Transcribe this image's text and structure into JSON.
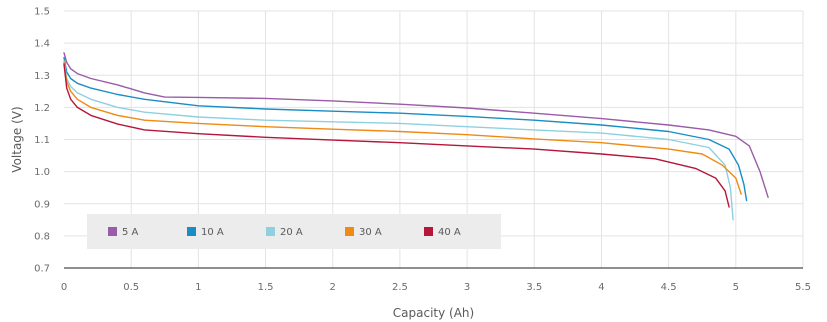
{
  "chart_data": {
    "type": "line",
    "title": "",
    "xlabel": "Capacity (Ah)",
    "ylabel": "Voltage (V)",
    "xlim": [
      0,
      5.5
    ],
    "ylim": [
      0.7,
      1.5
    ],
    "x_ticks": [
      "0",
      "0.5",
      "1",
      "1.5",
      "2",
      "2.5",
      "3",
      "3.5",
      "4",
      "4.5",
      "5",
      "5.5"
    ],
    "y_ticks": [
      "0.7",
      "0.8",
      "0.9",
      "1.0",
      "1.1",
      "1.2",
      "1.3",
      "1.4",
      "1.5"
    ],
    "grid": true,
    "legend_position": "bottom-left",
    "series": [
      {
        "name": "5 A",
        "color": "#9a5ba8",
        "points": [
          [
            0,
            1.37
          ],
          [
            0.02,
            1.34
          ],
          [
            0.05,
            1.32
          ],
          [
            0.1,
            1.305
          ],
          [
            0.2,
            1.29
          ],
          [
            0.4,
            1.27
          ],
          [
            0.6,
            1.245
          ],
          [
            0.75,
            1.232
          ],
          [
            1.0,
            1.231
          ],
          [
            1.5,
            1.228
          ],
          [
            2.0,
            1.22
          ],
          [
            2.5,
            1.21
          ],
          [
            3.0,
            1.198
          ],
          [
            3.5,
            1.182
          ],
          [
            4.0,
            1.165
          ],
          [
            4.5,
            1.145
          ],
          [
            4.8,
            1.13
          ],
          [
            5.0,
            1.11
          ],
          [
            5.1,
            1.08
          ],
          [
            5.18,
            1.0
          ],
          [
            5.24,
            0.92
          ]
        ]
      },
      {
        "name": "10 A",
        "color": "#1a8dc4",
        "points": [
          [
            0,
            1.355
          ],
          [
            0.02,
            1.31
          ],
          [
            0.05,
            1.29
          ],
          [
            0.1,
            1.275
          ],
          [
            0.2,
            1.26
          ],
          [
            0.4,
            1.24
          ],
          [
            0.6,
            1.225
          ],
          [
            1.0,
            1.205
          ],
          [
            1.5,
            1.195
          ],
          [
            2.0,
            1.188
          ],
          [
            2.5,
            1.182
          ],
          [
            3.0,
            1.172
          ],
          [
            3.5,
            1.16
          ],
          [
            4.0,
            1.145
          ],
          [
            4.5,
            1.125
          ],
          [
            4.8,
            1.1
          ],
          [
            4.95,
            1.07
          ],
          [
            5.02,
            1.02
          ],
          [
            5.06,
            0.96
          ],
          [
            5.08,
            0.91
          ]
        ]
      },
      {
        "name": "20 A",
        "color": "#8fd0e0",
        "points": [
          [
            0,
            1.345
          ],
          [
            0.02,
            1.29
          ],
          [
            0.05,
            1.265
          ],
          [
            0.1,
            1.245
          ],
          [
            0.2,
            1.225
          ],
          [
            0.4,
            1.2
          ],
          [
            0.6,
            1.185
          ],
          [
            1.0,
            1.17
          ],
          [
            1.5,
            1.16
          ],
          [
            2.0,
            1.155
          ],
          [
            2.5,
            1.15
          ],
          [
            3.0,
            1.14
          ],
          [
            3.5,
            1.13
          ],
          [
            4.0,
            1.12
          ],
          [
            4.5,
            1.1
          ],
          [
            4.8,
            1.075
          ],
          [
            4.92,
            1.02
          ],
          [
            4.96,
            0.95
          ],
          [
            4.98,
            0.85
          ]
        ]
      },
      {
        "name": "30 A",
        "color": "#ef8a14",
        "points": [
          [
            0,
            1.34
          ],
          [
            0.02,
            1.28
          ],
          [
            0.05,
            1.25
          ],
          [
            0.1,
            1.225
          ],
          [
            0.2,
            1.2
          ],
          [
            0.4,
            1.175
          ],
          [
            0.6,
            1.16
          ],
          [
            1.0,
            1.15
          ],
          [
            1.5,
            1.14
          ],
          [
            2.0,
            1.132
          ],
          [
            2.5,
            1.125
          ],
          [
            3.0,
            1.115
          ],
          [
            3.5,
            1.102
          ],
          [
            4.0,
            1.09
          ],
          [
            4.5,
            1.07
          ],
          [
            4.75,
            1.055
          ],
          [
            4.9,
            1.02
          ],
          [
            5.0,
            0.98
          ],
          [
            5.04,
            0.93
          ]
        ]
      },
      {
        "name": "40 A",
        "color": "#b5163a",
        "points": [
          [
            0,
            1.335
          ],
          [
            0.02,
            1.26
          ],
          [
            0.05,
            1.225
          ],
          [
            0.1,
            1.2
          ],
          [
            0.2,
            1.175
          ],
          [
            0.4,
            1.148
          ],
          [
            0.6,
            1.13
          ],
          [
            1.0,
            1.118
          ],
          [
            1.5,
            1.107
          ],
          [
            2.0,
            1.098
          ],
          [
            2.5,
            1.09
          ],
          [
            3.0,
            1.08
          ],
          [
            3.5,
            1.07
          ],
          [
            4.0,
            1.055
          ],
          [
            4.4,
            1.04
          ],
          [
            4.7,
            1.01
          ],
          [
            4.85,
            0.98
          ],
          [
            4.92,
            0.94
          ],
          [
            4.95,
            0.89
          ]
        ]
      }
    ]
  }
}
